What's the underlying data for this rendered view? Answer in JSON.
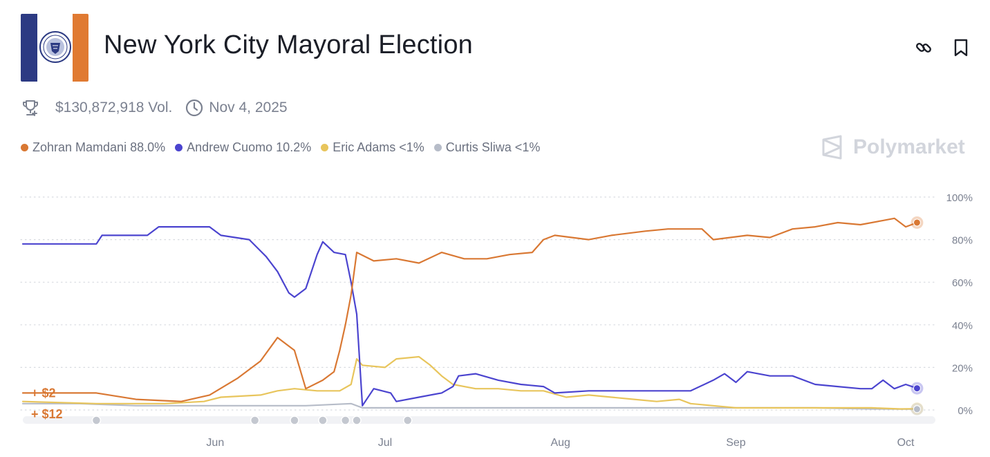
{
  "header": {
    "title": "New York City Mayoral Election",
    "volume": "$130,872,918 Vol.",
    "date": "Nov 4, 2025",
    "brand": "Polymarket"
  },
  "colors": {
    "mamdani": "#d97833",
    "cuomo": "#4b44cf",
    "adams": "#e8c55c",
    "sliwa": "#b6bcc8",
    "brand_gray": "#d2d5dc"
  },
  "icons": {
    "link": "link-icon",
    "bookmark": "bookmark-icon",
    "trophy": "trophy-icon",
    "clock": "clock-icon",
    "brand": "polymarket-logo-icon"
  },
  "legend": [
    {
      "label": "Zohran Mamdani 88.0%",
      "color": "#d97833"
    },
    {
      "label": "Andrew Cuomo 10.2%",
      "color": "#4b44cf"
    },
    {
      "label": "Eric Adams <1%",
      "color": "#e8c55c"
    },
    {
      "label": "Curtis Sliwa <1%",
      "color": "#b6bcc8"
    }
  ],
  "chart_data": {
    "type": "line",
    "title": "New York City Mayoral Election",
    "xlabel": "",
    "ylabel": "",
    "x_unit": "days since May 1, 2025",
    "xlim": [
      0,
      161
    ],
    "ylim": [
      0,
      100
    ],
    "y_ticks": [
      0,
      20,
      40,
      60,
      80,
      100
    ],
    "y_tick_labels": [
      "0%",
      "20%",
      "40%",
      "60%",
      "80%",
      "100%"
    ],
    "x_ticks": [
      {
        "label": "Jun",
        "x": 34
      },
      {
        "label": "Jul",
        "x": 64
      },
      {
        "label": "Aug",
        "x": 95
      },
      {
        "label": "Sep",
        "x": 126
      },
      {
        "label": "Oct",
        "x": 156
      }
    ],
    "grid": true,
    "legend_position": "top-left",
    "event_markers": [
      13,
      41,
      48,
      53,
      57,
      59,
      68
    ],
    "annotations": [
      {
        "text": "+ $2",
        "x": 2,
        "y": 8,
        "color": "#d97833"
      },
      {
        "text": "+ $12",
        "x": 2,
        "y": -2,
        "color": "#d97833"
      }
    ],
    "series": [
      {
        "name": "Zohran Mamdani",
        "color": "#d97833",
        "end_value": 88,
        "points": [
          [
            0,
            8
          ],
          [
            13,
            8
          ],
          [
            20,
            5
          ],
          [
            28,
            4
          ],
          [
            33,
            7
          ],
          [
            38,
            15
          ],
          [
            42,
            23
          ],
          [
            45,
            34
          ],
          [
            48,
            28
          ],
          [
            50,
            10
          ],
          [
            53,
            14
          ],
          [
            55,
            18
          ],
          [
            56,
            28
          ],
          [
            57,
            40
          ],
          [
            58,
            54
          ],
          [
            59,
            74
          ],
          [
            62,
            70
          ],
          [
            66,
            71
          ],
          [
            70,
            69
          ],
          [
            74,
            74
          ],
          [
            78,
            71
          ],
          [
            82,
            71
          ],
          [
            86,
            73
          ],
          [
            90,
            74
          ],
          [
            92,
            80
          ],
          [
            94,
            82
          ],
          [
            100,
            80
          ],
          [
            104,
            82
          ],
          [
            110,
            84
          ],
          [
            114,
            85
          ],
          [
            120,
            85
          ],
          [
            122,
            80
          ],
          [
            128,
            82
          ],
          [
            132,
            81
          ],
          [
            136,
            85
          ],
          [
            140,
            86
          ],
          [
            144,
            88
          ],
          [
            148,
            87
          ],
          [
            152,
            89
          ],
          [
            154,
            90
          ],
          [
            156,
            86
          ],
          [
            158,
            88
          ]
        ]
      },
      {
        "name": "Andrew Cuomo",
        "color": "#4b44cf",
        "end_value": 10.2,
        "points": [
          [
            0,
            78
          ],
          [
            13,
            78
          ],
          [
            14,
            82
          ],
          [
            22,
            82
          ],
          [
            24,
            86
          ],
          [
            33,
            86
          ],
          [
            35,
            82
          ],
          [
            40,
            80
          ],
          [
            43,
            72
          ],
          [
            45,
            65
          ],
          [
            47,
            55
          ],
          [
            48,
            53
          ],
          [
            50,
            57
          ],
          [
            52,
            73
          ],
          [
            53,
            79
          ],
          [
            55,
            74
          ],
          [
            57,
            73
          ],
          [
            58,
            60
          ],
          [
            59,
            45
          ],
          [
            60,
            2
          ],
          [
            62,
            10
          ],
          [
            65,
            8
          ],
          [
            66,
            4
          ],
          [
            70,
            6
          ],
          [
            74,
            8
          ],
          [
            76,
            11
          ],
          [
            77,
            16
          ],
          [
            80,
            17
          ],
          [
            84,
            14
          ],
          [
            88,
            12
          ],
          [
            92,
            11
          ],
          [
            94,
            8
          ],
          [
            100,
            9
          ],
          [
            104,
            9
          ],
          [
            110,
            9
          ],
          [
            114,
            9
          ],
          [
            118,
            9
          ],
          [
            122,
            14
          ],
          [
            124,
            17
          ],
          [
            126,
            13
          ],
          [
            128,
            18
          ],
          [
            132,
            16
          ],
          [
            136,
            16
          ],
          [
            140,
            12
          ],
          [
            144,
            11
          ],
          [
            148,
            10
          ],
          [
            150,
            10
          ],
          [
            152,
            14
          ],
          [
            154,
            10
          ],
          [
            156,
            12
          ],
          [
            158,
            10.2
          ]
        ]
      },
      {
        "name": "Eric Adams",
        "color": "#e8c55c",
        "end_value": 0.6,
        "points": [
          [
            0,
            4
          ],
          [
            13,
            3
          ],
          [
            18,
            3
          ],
          [
            22,
            3
          ],
          [
            25,
            3
          ],
          [
            32,
            4
          ],
          [
            35,
            6
          ],
          [
            42,
            7
          ],
          [
            45,
            9
          ],
          [
            48,
            10
          ],
          [
            52,
            9
          ],
          [
            56,
            9
          ],
          [
            58,
            12
          ],
          [
            59,
            24
          ],
          [
            60,
            21
          ],
          [
            64,
            20
          ],
          [
            66,
            24
          ],
          [
            70,
            25
          ],
          [
            72,
            21
          ],
          [
            74,
            16
          ],
          [
            76,
            12
          ],
          [
            80,
            10
          ],
          [
            84,
            10
          ],
          [
            88,
            9
          ],
          [
            92,
            9
          ],
          [
            96,
            6
          ],
          [
            100,
            7
          ],
          [
            104,
            6
          ],
          [
            108,
            5
          ],
          [
            112,
            4
          ],
          [
            116,
            5
          ],
          [
            118,
            3
          ],
          [
            122,
            2
          ],
          [
            126,
            1
          ],
          [
            130,
            1
          ],
          [
            134,
            1
          ],
          [
            140,
            1
          ],
          [
            146,
            1
          ],
          [
            150,
            1
          ],
          [
            155,
            0.5
          ],
          [
            158,
            0.6
          ]
        ]
      },
      {
        "name": "Curtis Sliwa",
        "color": "#b6bcc8",
        "end_value": 0.4,
        "points": [
          [
            0,
            3
          ],
          [
            10,
            3
          ],
          [
            20,
            2
          ],
          [
            30,
            2
          ],
          [
            40,
            2
          ],
          [
            50,
            2
          ],
          [
            58,
            3
          ],
          [
            60,
            1
          ],
          [
            64,
            1
          ],
          [
            70,
            1
          ],
          [
            80,
            1
          ],
          [
            90,
            1
          ],
          [
            100,
            1
          ],
          [
            110,
            1
          ],
          [
            120,
            1
          ],
          [
            130,
            1
          ],
          [
            140,
            1
          ],
          [
            150,
            0.5
          ],
          [
            158,
            0.4
          ]
        ]
      }
    ]
  }
}
